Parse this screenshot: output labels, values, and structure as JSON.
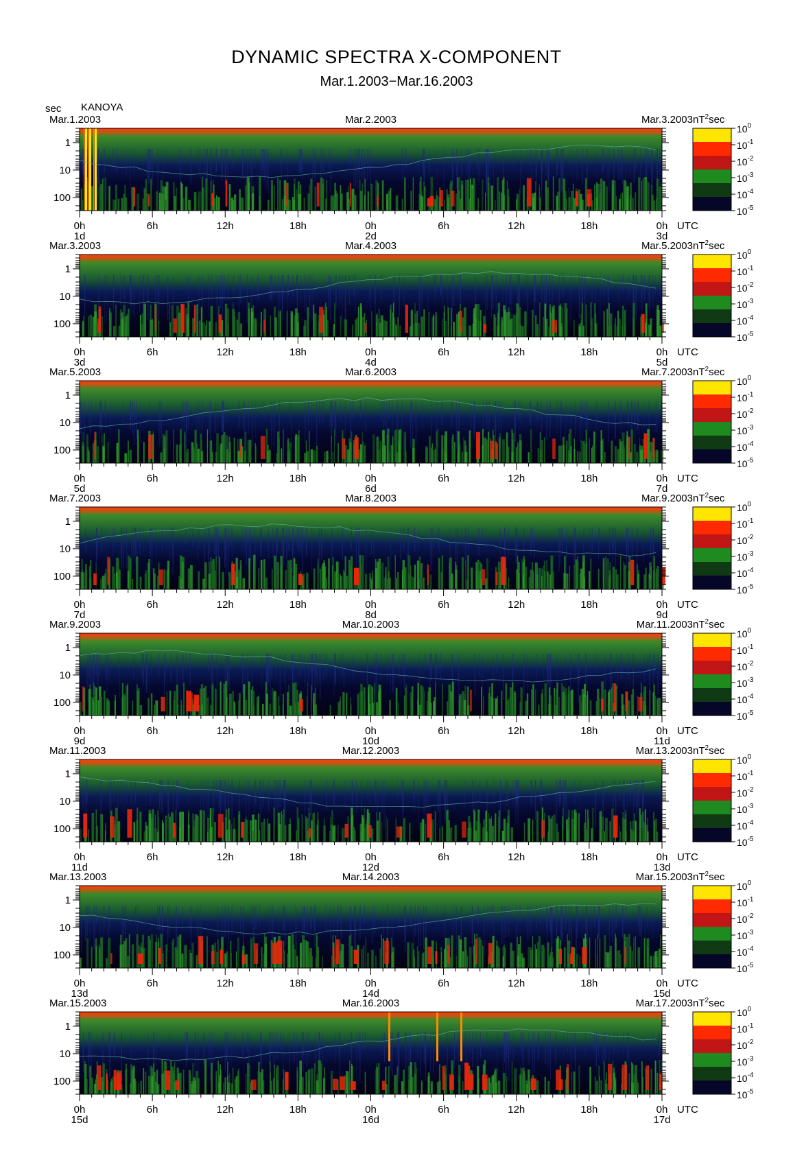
{
  "title": "DYNAMIC SPECTRA X-COMPONENT",
  "subtitle": "Mar.1.2003−Mar.16.2003",
  "station": "KANOYA",
  "y_unit": "sec",
  "time_zone": "UTC",
  "colorbar_unit": "nT",
  "colorbar_unit_sup": "2",
  "colorbar_unit_tail": "sec",
  "colors": {
    "background": "#000000",
    "noise": "#0a0a4a",
    "low": "#1c7a1c",
    "high": "#ff2a00",
    "peak": "#ffe600"
  },
  "chart_data": {
    "type": "heatmap",
    "y_axis": {
      "scale": "log",
      "ticks": [
        "1",
        "10",
        "100"
      ]
    },
    "x_axis": {
      "ticks": [
        "0h",
        "6h",
        "12h",
        "18h",
        "0h",
        "6h",
        "12h",
        "18h",
        "0h"
      ]
    },
    "colorbar": {
      "base": "10",
      "exponents": [
        "0",
        "-1",
        "-2",
        "-3",
        "-4",
        "-5"
      ],
      "colors": [
        "#ffe600",
        "#ff2a00",
        "#c21616",
        "#1f8a1f",
        "#0f3a14",
        "#060628"
      ]
    },
    "panels": [
      {
        "start_label": "Mar.1.2003",
        "mid_label": "Mar.2.2003",
        "end_label": "Mar.3.2003",
        "days": [
          "1d",
          "2d",
          "3d"
        ]
      },
      {
        "start_label": "Mar.3.2003",
        "mid_label": "Mar.4.2003",
        "end_label": "Mar.5.2003",
        "days": [
          "3d",
          "4d",
          "5d"
        ]
      },
      {
        "start_label": "Mar.5.2003",
        "mid_label": "Mar.6.2003",
        "end_label": "Mar.7.2003",
        "days": [
          "5d",
          "6d",
          "7d"
        ]
      },
      {
        "start_label": "Mar.7.2003",
        "mid_label": "Mar.8.2003",
        "end_label": "Mar.9.2003",
        "days": [
          "7d",
          "8d",
          "9d"
        ]
      },
      {
        "start_label": "Mar.9.2003",
        "mid_label": "Mar.10.2003",
        "end_label": "Mar.11.2003",
        "days": [
          "9d",
          "10d",
          "11d"
        ]
      },
      {
        "start_label": "Mar.11.2003",
        "mid_label": "Mar.12.2003",
        "end_label": "Mar.13.2003",
        "days": [
          "11d",
          "12d",
          "13d"
        ]
      },
      {
        "start_label": "Mar.13.2003",
        "mid_label": "Mar.14.2003",
        "end_label": "Mar.15.2003",
        "days": [
          "13d",
          "14d",
          "15d"
        ]
      },
      {
        "start_label": "Mar.15.2003",
        "mid_label": "Mar.16.2003",
        "end_label": "Mar.17.2003",
        "days": [
          "15d",
          "16d",
          "17d"
        ]
      }
    ]
  }
}
